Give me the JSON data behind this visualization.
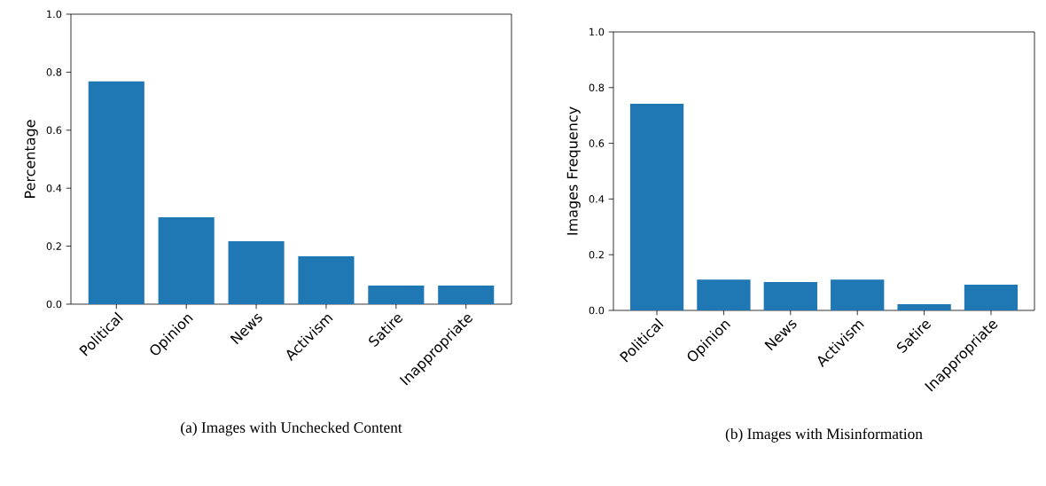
{
  "chart_data": [
    {
      "type": "bar",
      "title": "(a) Images with Unchecked Content",
      "ylabel": "Percentage",
      "categories": [
        "Political",
        "Opinion",
        "News",
        "Activism",
        "Satire",
        "Inappropriate"
      ],
      "values": [
        0.768,
        0.3,
        0.217,
        0.165,
        0.064,
        0.064
      ],
      "color": "#1f77b4",
      "ylim": [
        0,
        1.0
      ],
      "yticks": [
        {
          "value": 0,
          "label": "0.0"
        },
        {
          "value": 0.2,
          "label": "0.2"
        },
        {
          "value": 0.4,
          "label": "0.4"
        },
        {
          "value": 0.6,
          "label": "0.6"
        },
        {
          "value": 0.8,
          "label": "0.8"
        },
        {
          "value": 1.0,
          "label": "1.0"
        }
      ],
      "grid": false
    },
    {
      "type": "bar",
      "title": "(b) Images with Misinformation",
      "ylabel": "Images Frequency",
      "categories": [
        "Political",
        "Opinion",
        "News",
        "Activism",
        "Satire",
        "Inappropriate"
      ],
      "values": [
        0.742,
        0.111,
        0.102,
        0.111,
        0.022,
        0.092
      ],
      "color": "#1f77b4",
      "ylim": [
        0,
        1.0
      ],
      "yticks": [
        {
          "value": 0,
          "label": "0.0"
        },
        {
          "value": 0.2,
          "label": "0.2"
        },
        {
          "value": 0.4,
          "label": "0.4"
        },
        {
          "value": 0.6,
          "label": "0.6"
        },
        {
          "value": 0.8,
          "label": "0.8"
        },
        {
          "value": 1.0,
          "label": "1.0"
        }
      ],
      "grid": false
    }
  ]
}
